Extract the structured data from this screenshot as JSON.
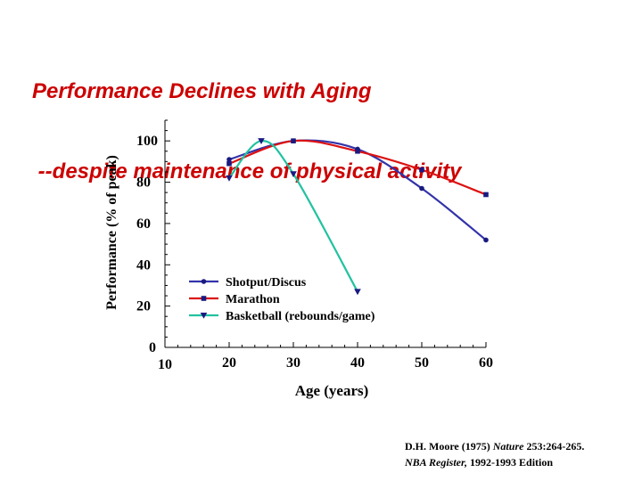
{
  "page": {
    "title_line1": "Performance Declines with Aging",
    "title_line2": " --despite maintenance of physical activity"
  },
  "colors": {
    "title": "#cc0000",
    "shotput": "#3333aa",
    "marathon": "#dd1111",
    "basketball": "#22c2a0",
    "marker": "#1a1a80"
  },
  "chart_data": {
    "type": "line",
    "xlabel": "Age (years)",
    "ylabel": "Performance (% of peak)",
    "xlim": [
      10,
      60
    ],
    "ylim": [
      0,
      110
    ],
    "xticks": [
      10,
      20,
      30,
      40,
      50,
      60
    ],
    "yticks": [
      0,
      20,
      40,
      60,
      80,
      100
    ],
    "grid": false,
    "legend": "lower-center",
    "series": [
      {
        "name": "Shotput/Discus",
        "marker": "circle",
        "color_key": "shotput",
        "points": [
          [
            20,
            91
          ],
          [
            30,
            100
          ],
          [
            40,
            96
          ],
          [
            50,
            77
          ],
          [
            60,
            52
          ]
        ]
      },
      {
        "name": "Marathon",
        "marker": "square",
        "color_key": "marathon",
        "points": [
          [
            20,
            89
          ],
          [
            30,
            100
          ],
          [
            40,
            95
          ],
          [
            50,
            86
          ],
          [
            60,
            74
          ]
        ]
      },
      {
        "name": "Basketball (rebounds/game)",
        "marker": "triangle-down",
        "color_key": "basketball",
        "points": [
          [
            20,
            82
          ],
          [
            25,
            100
          ],
          [
            30,
            84
          ],
          [
            40,
            27
          ]
        ]
      }
    ]
  },
  "citation": {
    "line1_prefix": "D.H. Moore (1975) ",
    "line1_journal": "Nature",
    "line1_suffix": " 253:264-265.",
    "line2_journal": "NBA Register,",
    "line2_suffix": " 1992-1993 Edition"
  }
}
